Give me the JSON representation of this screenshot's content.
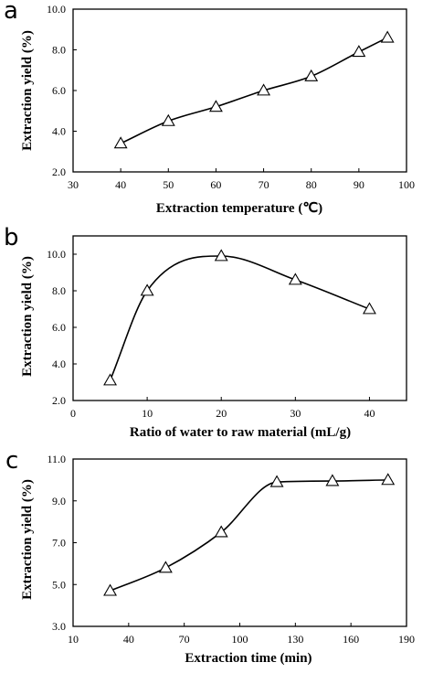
{
  "chart_data": [
    {
      "type": "line",
      "panel": "a",
      "xlabel": "Extraction temperature (℃)",
      "ylabel": "Extraction yield (%)",
      "xlim": [
        30,
        100
      ],
      "ylim": [
        2.0,
        10.0
      ],
      "xticks": [
        "30",
        "40",
        "50",
        "60",
        "70",
        "80",
        "90",
        "100"
      ],
      "yticks": [
        "2.0",
        "4.0",
        "6.0",
        "8.0",
        "10.0"
      ],
      "x": [
        40,
        50,
        60,
        70,
        80,
        90,
        96
      ],
      "y": [
        3.4,
        4.5,
        5.2,
        6.0,
        6.7,
        7.9,
        8.6
      ],
      "marker": "triangle",
      "smooth": true
    },
    {
      "type": "line",
      "panel": "b",
      "xlabel": "Ratio of water to raw material (mL/g)",
      "ylabel": "Extraction yield (%)",
      "xlim": [
        0,
        45
      ],
      "ylim": [
        2.0,
        11.0
      ],
      "xticks": [
        "0",
        "10",
        "20",
        "30",
        "40"
      ],
      "yticks": [
        "2.0",
        "4.0",
        "6.0",
        "8.0",
        "10.0"
      ],
      "x": [
        5,
        10,
        20,
        30,
        40
      ],
      "y": [
        3.1,
        8.0,
        9.9,
        8.6,
        7.0
      ],
      "marker": "triangle",
      "smooth": true
    },
    {
      "type": "line",
      "panel": "c",
      "xlabel": "Extraction time (min)",
      "ylabel": "Extraction yield (%)",
      "xlim": [
        10,
        190
      ],
      "ylim": [
        3.0,
        11.0
      ],
      "xticks": [
        "10",
        "40",
        "70",
        "100",
        "130",
        "160",
        "190"
      ],
      "yticks": [
        "3.0",
        "5.0",
        "7.0",
        "9.0",
        "11.0"
      ],
      "x": [
        30,
        60,
        90,
        120,
        150,
        180
      ],
      "y": [
        4.7,
        5.8,
        7.5,
        9.9,
        9.95,
        10.0
      ],
      "marker": "triangle",
      "smooth": true
    }
  ]
}
